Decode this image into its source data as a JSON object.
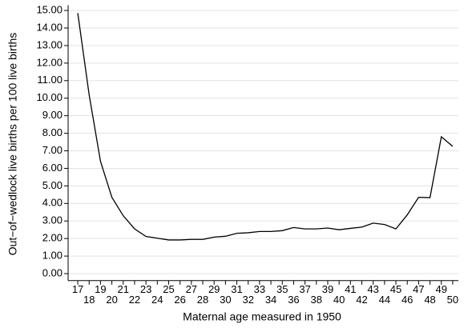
{
  "chart_data": {
    "type": "line",
    "x_label": "Maternal age measured in 1950",
    "y_label": "Out−of−wedlock live births per 100 live births",
    "x": [
      17,
      18,
      19,
      20,
      21,
      22,
      23,
      24,
      25,
      26,
      27,
      28,
      29,
      30,
      31,
      32,
      33,
      34,
      35,
      36,
      37,
      38,
      39,
      40,
      41,
      42,
      43,
      44,
      45,
      46,
      47,
      48,
      49,
      50
    ],
    "series": [
      {
        "color": "#000000",
        "values": [
          14.85,
          10.2,
          6.4,
          4.35,
          3.3,
          2.55,
          2.12,
          2.02,
          1.92,
          1.92,
          1.95,
          1.95,
          2.08,
          2.13,
          2.3,
          2.33,
          2.4,
          2.4,
          2.45,
          2.63,
          2.55,
          2.55,
          2.6,
          2.5,
          2.58,
          2.65,
          2.88,
          2.8,
          2.55,
          3.35,
          4.35,
          4.33,
          7.8,
          7.25
        ]
      }
    ],
    "xlim": [
      16.15,
      50.5
    ],
    "ylim": [
      -0.4,
      15.3
    ],
    "xticks": [
      17,
      18,
      19,
      20,
      21,
      22,
      23,
      24,
      25,
      26,
      27,
      28,
      29,
      30,
      31,
      32,
      33,
      34,
      35,
      36,
      37,
      38,
      39,
      40,
      41,
      42,
      43,
      44,
      45,
      46,
      47,
      48,
      49,
      50
    ],
    "yticks": [
      {
        "value": 0,
        "label": "0.00"
      },
      {
        "value": 1,
        "label": "1.00"
      },
      {
        "value": 2,
        "label": "2.00"
      },
      {
        "value": 3,
        "label": "3.00"
      },
      {
        "value": 4,
        "label": "4.00"
      },
      {
        "value": 5,
        "label": "5.00"
      },
      {
        "value": 6,
        "label": "6.00"
      },
      {
        "value": 7,
        "label": "7.00"
      },
      {
        "value": 8,
        "label": "8.00"
      },
      {
        "value": 9,
        "label": "9.00"
      },
      {
        "value": 10,
        "label": "10.00"
      },
      {
        "value": 11,
        "label": "11.00"
      },
      {
        "value": 12,
        "label": "12.00"
      },
      {
        "value": 13,
        "label": "13.00"
      },
      {
        "value": 14,
        "label": "14.00"
      },
      {
        "value": 15,
        "label": "15.00"
      }
    ],
    "grid": true
  }
}
